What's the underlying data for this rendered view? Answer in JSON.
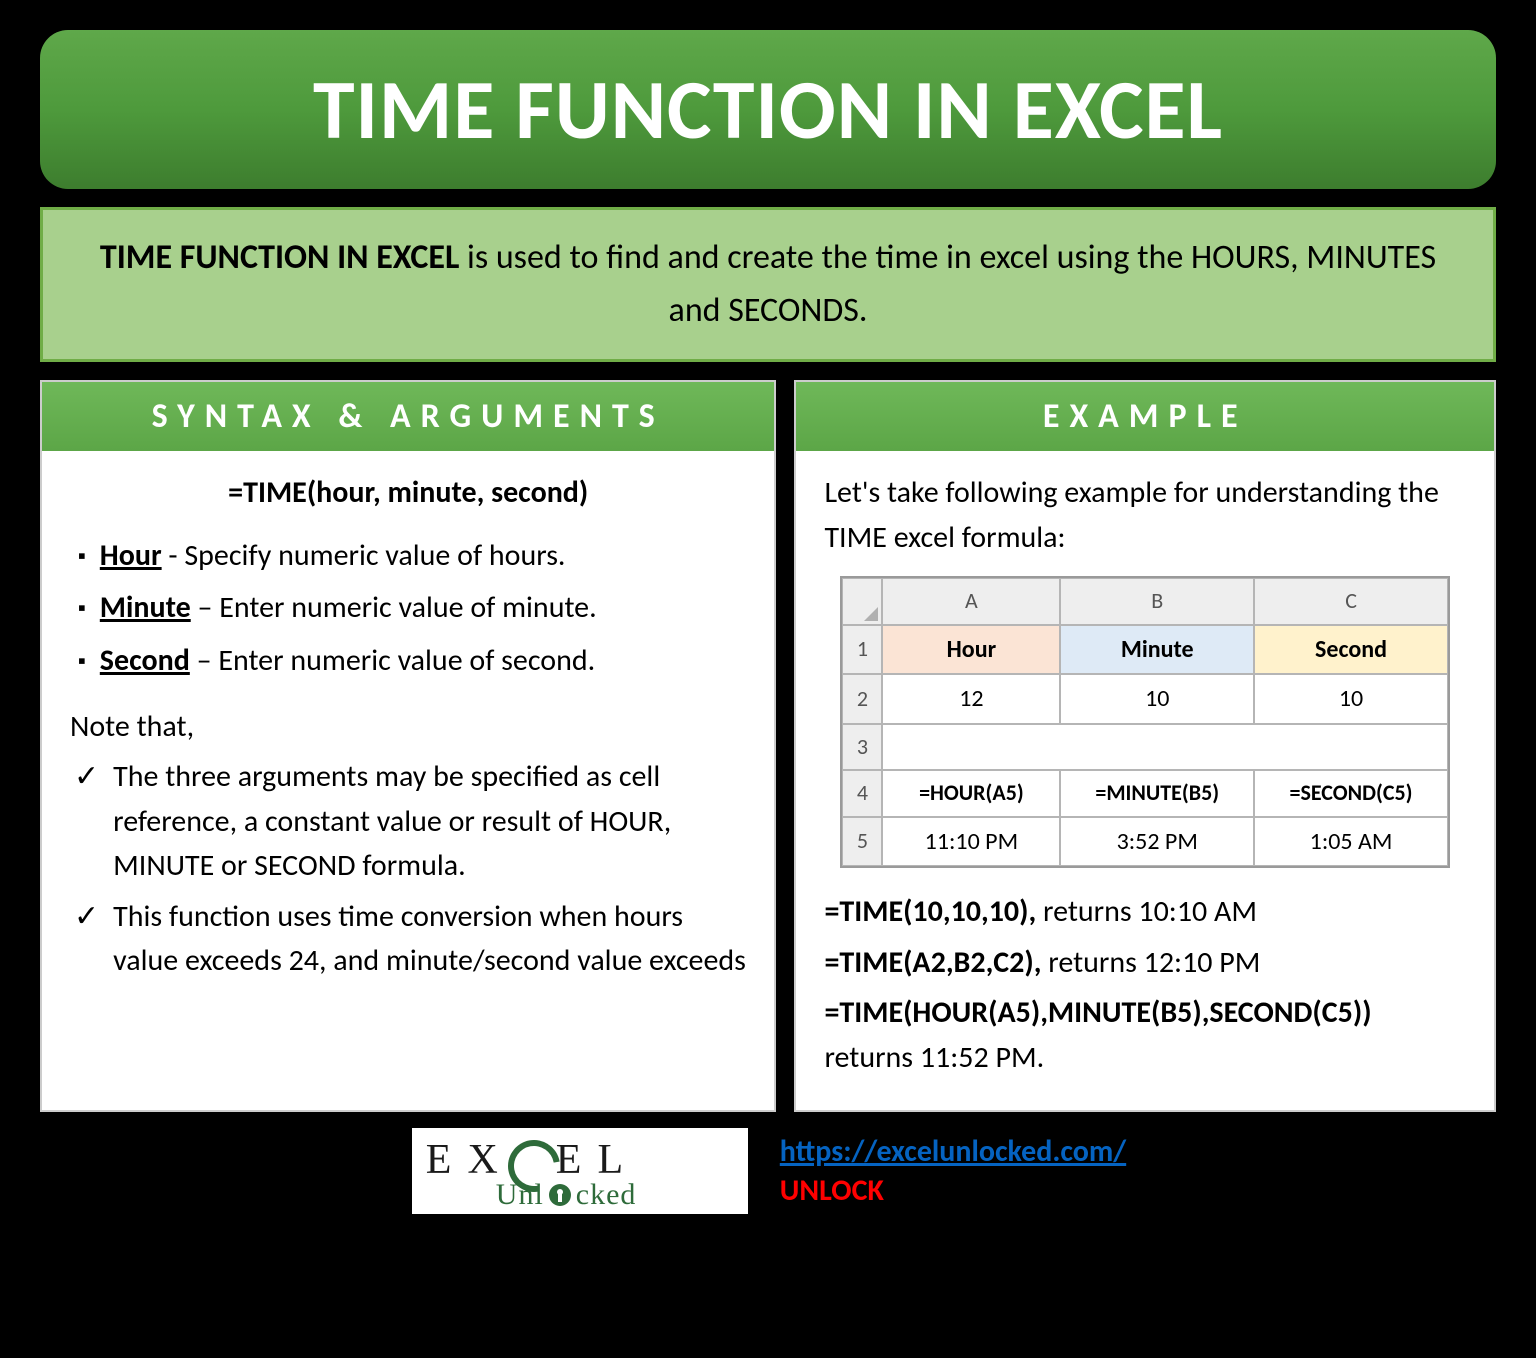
{
  "colors": {
    "page_bg": "#000000",
    "title_gradient_top": "#5fa84a",
    "title_gradient_bottom": "#3d7d2e",
    "title_text": "#ffffff",
    "description_bg": "#a8d08d",
    "description_border": "#70ad47",
    "panel_header_top": "#6fb859",
    "panel_header_bottom": "#5ca647",
    "panel_bg": "#ffffff",
    "sheet_header_bg": "#eeeeee",
    "sheet_border": "#b5b5b5",
    "cell_hour_bg": "#fbe4d5",
    "cell_minute_bg": "#deeaf6",
    "cell_second_bg": "#fff2cc",
    "link_color": "#0563c1",
    "unlock_color": "#ff0000",
    "logo_green": "#2e6b3a"
  },
  "title": "TIME FUNCTION IN EXCEL",
  "description": {
    "bold_lead": "TIME FUNCTION IN EXCEL",
    "rest": " is used to find and create the time in excel using the HOURS, MINUTES and SECONDS."
  },
  "left_panel": {
    "header": "SYNTAX & ARGUMENTS",
    "syntax": "=TIME(hour, minute, second)",
    "args": [
      {
        "name": "Hour",
        "desc": " - Specify numeric value of hours."
      },
      {
        "name": "Minute",
        "desc": " – Enter numeric value of minute."
      },
      {
        "name": "Second",
        "desc": " – Enter numeric value of second."
      }
    ],
    "note_label": "Note that,",
    "notes": [
      "The three arguments may be specified as cell reference, a constant value or result of HOUR, MINUTE or SECOND formula.",
      "This function uses time conversion when hours value exceeds 24, and minute/second value exceeds"
    ]
  },
  "right_panel": {
    "header": "EXAMPLE",
    "intro": "Let's take following example for understanding the TIME excel formula:",
    "sheet": {
      "col_letters": [
        "A",
        "B",
        "C"
      ],
      "row_numbers": [
        "1",
        "2",
        "3",
        "4",
        "5"
      ],
      "header_row": [
        "Hour",
        "Minute",
        "Second"
      ],
      "data_row": [
        "12",
        "10",
        "10"
      ],
      "formula_row": [
        "=HOUR(A5)",
        "=MINUTE(B5)",
        "=SECOND(C5)"
      ],
      "result_row": [
        "11:10 PM",
        "3:52 PM",
        "1:05 AM"
      ]
    },
    "results": [
      {
        "bold": "=TIME(10,10,10),",
        "rest": " returns 10:10 AM"
      },
      {
        "bold": "=TIME(A2,B2,C2),",
        "rest": " returns 12:10 PM"
      },
      {
        "bold": "=TIME(HOUR(A5),MINUTE(B5),SECOND(C5))",
        "rest": " returns 11:52 PM."
      }
    ]
  },
  "footer": {
    "logo_top_pre": "EX",
    "logo_top_post": "EL",
    "logo_bottom_pre": "Unl",
    "logo_bottom_post": "cked",
    "link": "https://excelunlocked.com/",
    "unlock": "UNLOCK"
  }
}
